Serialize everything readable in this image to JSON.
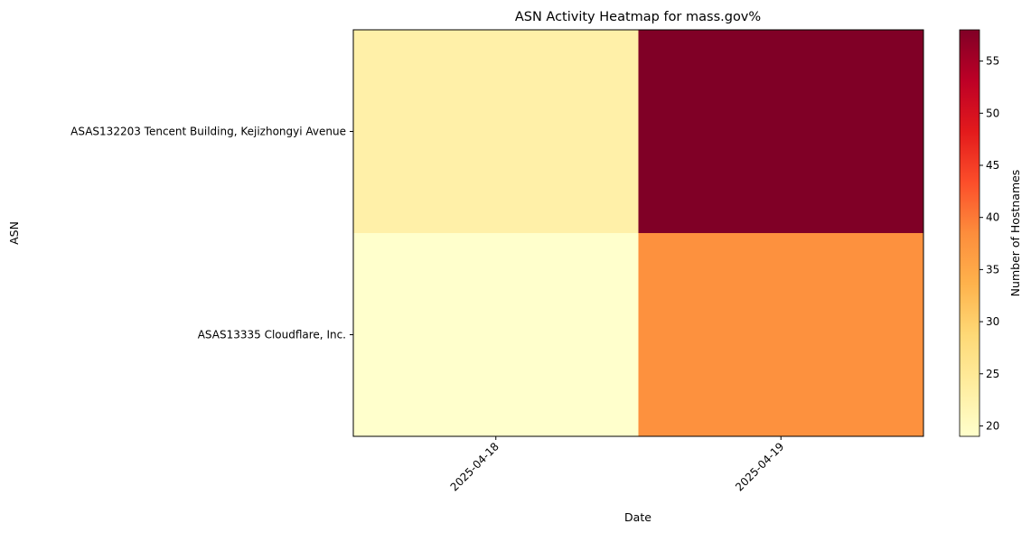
{
  "chart_data": {
    "type": "heatmap",
    "title": "ASN Activity Heatmap for mass.gov%",
    "xlabel": "Date",
    "ylabel": "ASN",
    "x_categories": [
      "2025-04-18",
      "2025-04-19"
    ],
    "y_categories": [
      "ASAS132203 Tencent Building, Kejizhongyi Avenue",
      "ASAS13335 Cloudflare, Inc."
    ],
    "values": [
      [
        23,
        58
      ],
      [
        19,
        38
      ]
    ],
    "colorbar": {
      "label": "Number of Hostnames",
      "range": [
        19,
        58
      ],
      "ticks": [
        "20",
        "25",
        "30",
        "35",
        "40",
        "45",
        "50",
        "55"
      ],
      "colormap": "YlOrRd"
    },
    "grid": false
  }
}
